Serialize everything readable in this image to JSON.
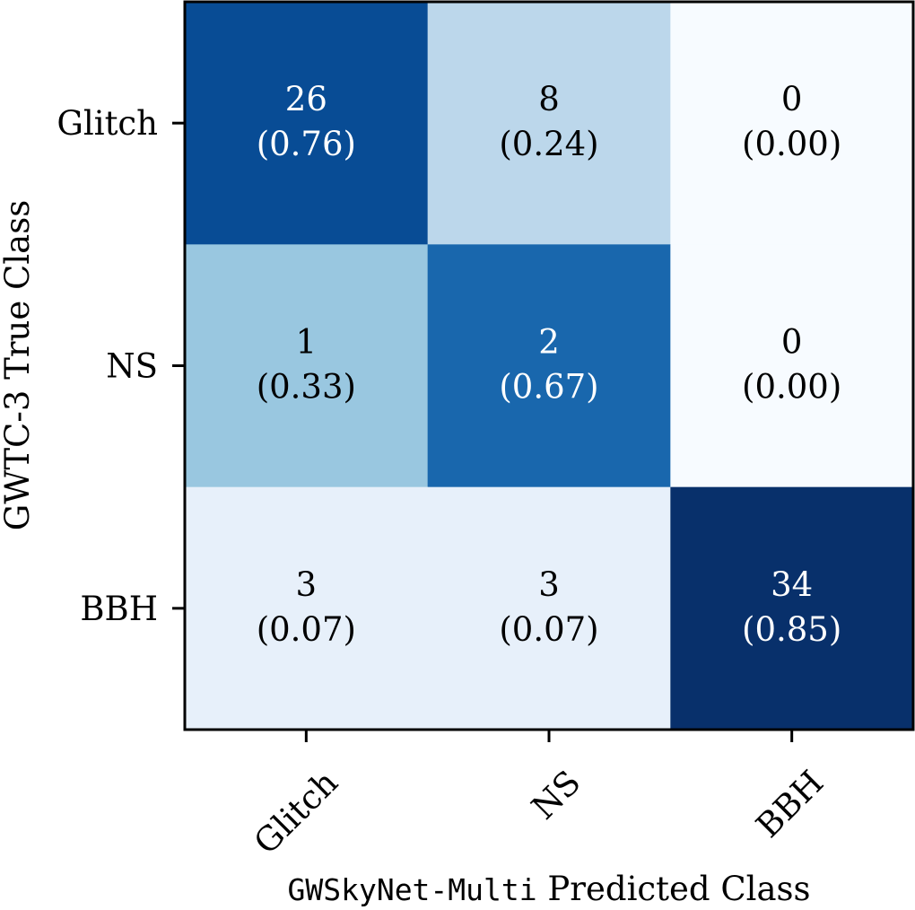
{
  "chart_data": {
    "type": "heatmap",
    "title": "",
    "xlabel_prefix": "GWSkyNet-Multi",
    "xlabel_suffix": "Predicted Class",
    "ylabel": "GWTC-3 True Class",
    "x_categories": [
      "Glitch",
      "NS",
      "BBH"
    ],
    "y_categories": [
      "Glitch",
      "NS",
      "BBH"
    ],
    "counts": [
      [
        26,
        8,
        0
      ],
      [
        1,
        2,
        0
      ],
      [
        3,
        3,
        34
      ]
    ],
    "fractions": [
      [
        "(0.76)",
        "(0.24)",
        "(0.00)"
      ],
      [
        "(0.33)",
        "(0.67)",
        "(0.00)"
      ],
      [
        "(0.07)",
        "(0.07)",
        "(0.85)"
      ]
    ],
    "fraction_values": [
      [
        0.76,
        0.24,
        0.0
      ],
      [
        0.33,
        0.67,
        0.0
      ],
      [
        0.07,
        0.07,
        0.85
      ]
    ],
    "colormap": "Blues",
    "colors": {
      "high": "#08306b",
      "low": "#f7fbff",
      "text_dark": "#000000",
      "text_light": "#ffffff"
    },
    "grid": false,
    "legend": "none"
  }
}
